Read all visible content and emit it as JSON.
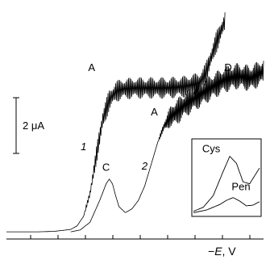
{
  "chart_data": {
    "type": "line",
    "title": "",
    "xlabel_prefix": "−",
    "xlabel_var": "E",
    "xlabel_suffix": ", V",
    "ylabel": "",
    "x_ticks_count": 9,
    "scale_bar_label": "2 μA",
    "scale_bar_value_uA": 2,
    "grid": false,
    "legend": "none",
    "series": [
      {
        "name": "1",
        "x": [
          0.0,
          0.05,
          0.1,
          0.15,
          0.2,
          0.22,
          0.24,
          0.26,
          0.28,
          0.3,
          0.32,
          0.34,
          0.36,
          0.4,
          0.45,
          0.5,
          0.55,
          0.6,
          0.62,
          0.65,
          0.68
        ],
        "y": [
          0.0,
          0.0,
          0.0,
          0.02,
          0.1,
          0.25,
          0.65,
          1.6,
          3.2,
          4.7,
          5.5,
          5.85,
          5.95,
          6.0,
          6.0,
          6.0,
          6.05,
          6.2,
          6.6,
          7.8,
          8.8
        ],
        "oscillation_start_x": 0.24,
        "oscillation_uA": 0.45
      },
      {
        "name": "2",
        "x": [
          0.2,
          0.23,
          0.26,
          0.29,
          0.31,
          0.32,
          0.33,
          0.34,
          0.35,
          0.37,
          0.39,
          0.41,
          0.43,
          0.45,
          0.47,
          0.49,
          0.51,
          0.53,
          0.56,
          0.6,
          0.64,
          0.68,
          0.72,
          0.76,
          0.8
        ],
        "y": [
          0.0,
          0.08,
          0.4,
          1.3,
          2.0,
          2.2,
          2.0,
          1.5,
          1.05,
          0.8,
          0.95,
          1.3,
          1.9,
          2.8,
          3.7,
          4.4,
          4.8,
          5.0,
          5.35,
          5.7,
          6.05,
          6.35,
          6.5,
          6.4,
          6.7
        ],
        "oscillation_start_x": 0.47,
        "oscillation_uA": 0.55
      }
    ],
    "annotations": [
      {
        "text": "A",
        "x": 0.265,
        "y": 6.7
      },
      {
        "text": "1",
        "x": 0.24,
        "y": 3.4
      },
      {
        "text": "C",
        "x": 0.31,
        "y": 2.55
      },
      {
        "text": "2",
        "x": 0.43,
        "y": 2.6
      },
      {
        "text": "A",
        "x": 0.46,
        "y": 4.85
      },
      {
        "text": "D",
        "x": 0.69,
        "y": 6.7
      }
    ],
    "x_range": [
      0,
      0.8
    ],
    "y_range": [
      -0.3,
      9.4
    ],
    "inset": {
      "series": [
        {
          "name": "Cys",
          "x": [
            0,
            0.15,
            0.3,
            0.45,
            0.55,
            0.65,
            0.75,
            0.85,
            1.0
          ],
          "y": [
            0.02,
            0.08,
            0.25,
            0.6,
            0.82,
            0.72,
            0.45,
            0.42,
            0.65
          ]
        },
        {
          "name": "Pen",
          "x": [
            0,
            0.2,
            0.4,
            0.5,
            0.6,
            0.7,
            0.8,
            0.9,
            1.0
          ],
          "y": [
            0.0,
            0.04,
            0.12,
            0.18,
            0.22,
            0.17,
            0.1,
            0.11,
            0.16
          ]
        }
      ],
      "y_range": [
        -0.03,
        1.05
      ],
      "labels": [
        {
          "text": "Cys",
          "x": 0.27,
          "y": 0.88
        },
        {
          "text": "Pen",
          "x": 0.72,
          "y": 0.33
        }
      ]
    }
  }
}
